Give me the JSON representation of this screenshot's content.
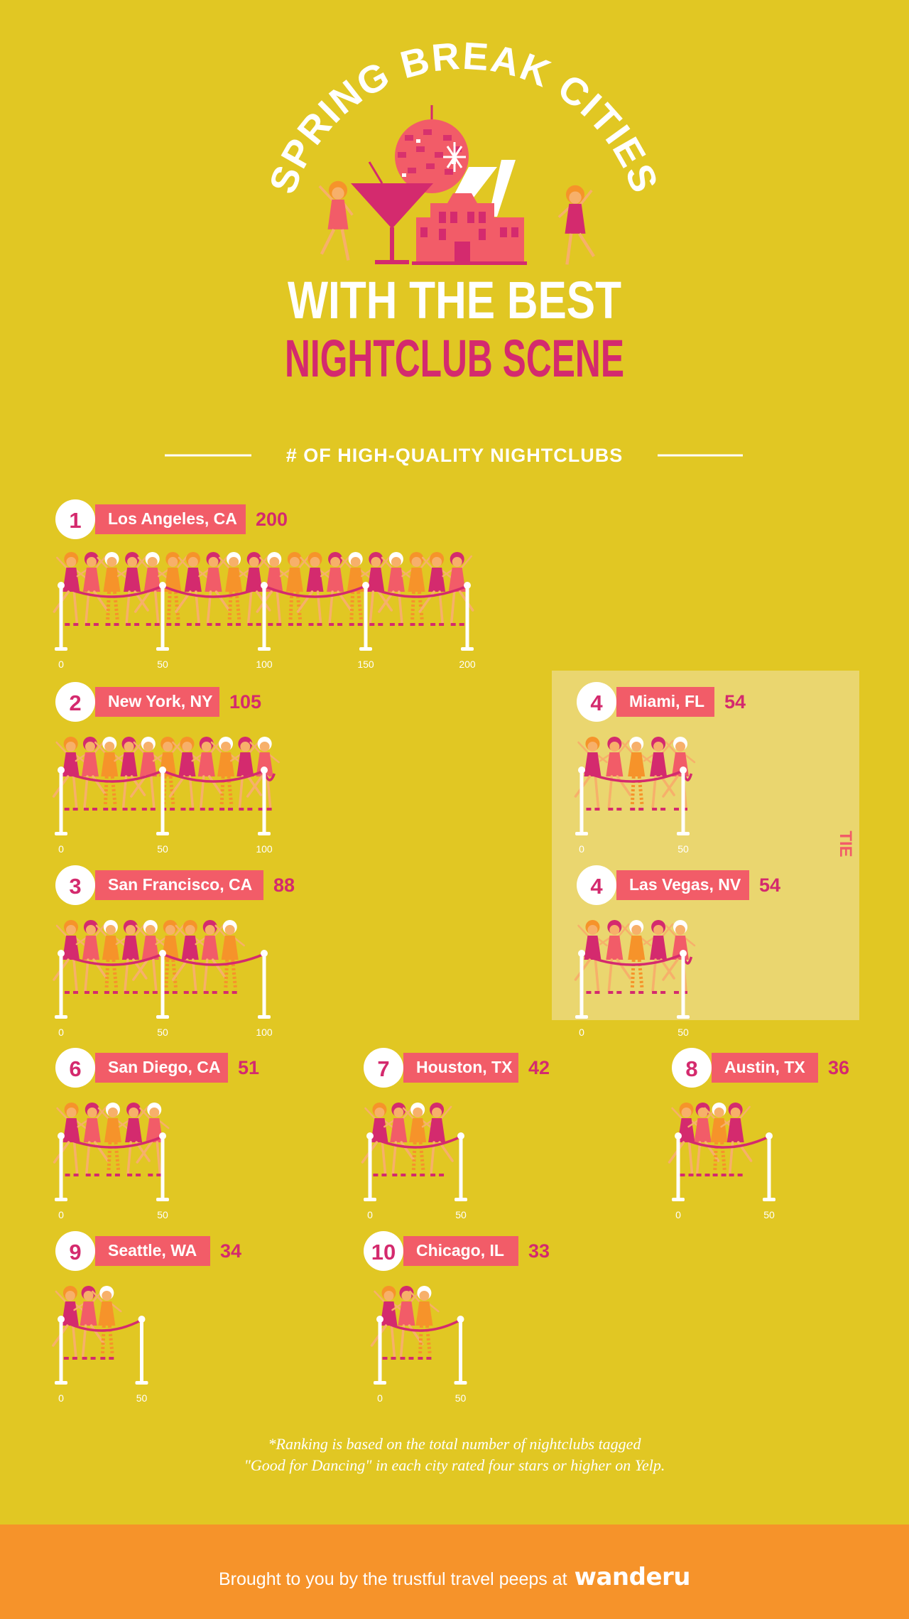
{
  "header": {
    "title_arc": "SPRING BREAK CITIES",
    "title_line2": "WITH THE BEST",
    "title_line3": "NIGHTCLUB SCENE"
  },
  "colors": {
    "background": "#e1c723",
    "white": "#ffffff",
    "magenta": "#d42a6e",
    "coral": "#f25c68",
    "orange": "#f6932a",
    "tie_panel": "#ead66f",
    "skin": "#f7b06a"
  },
  "chart_data": {
    "type": "bar",
    "title": "# OF HIGH-QUALITY NIGHTCLUBS",
    "unit_note": "each dancer figure represents about 10 nightclubs",
    "ranks": [
      "1",
      "2",
      "3",
      "4",
      "4",
      "6",
      "7",
      "8",
      "9",
      "10"
    ],
    "categories": [
      "Los Angeles, CA",
      "New York, NY",
      "San Francisco, CA",
      "Miami, FL",
      "Las Vegas, NV",
      "San Diego, CA",
      "Houston, TX",
      "Austin, TX",
      "Seattle, WA",
      "Chicago, IL"
    ],
    "values": [
      200,
      105,
      88,
      54,
      54,
      51,
      42,
      36,
      34,
      33
    ],
    "axis_ticks": [
      [
        "0",
        "50",
        "100",
        "150",
        "200"
      ],
      [
        "0",
        "50",
        "100"
      ],
      [
        "0",
        "50",
        "100"
      ],
      [
        "0",
        "50"
      ],
      [
        "0",
        "50"
      ],
      [
        "0",
        "50"
      ],
      [
        "0",
        "50"
      ],
      [
        "0",
        "50"
      ],
      [
        "0",
        "50"
      ],
      [
        "0",
        "50"
      ]
    ],
    "tie_label": "TIE",
    "tie_between": [
      "Miami, FL",
      "Las Vegas, NV"
    ]
  },
  "footnote": {
    "line1": "*Ranking is based on the total number of nightclubs tagged",
    "line2": "\"Good for Dancing\" in each city rated four stars or higher on Yelp."
  },
  "footer": {
    "text": "Brought to you by the trustful travel peeps at",
    "brand": "wanderu"
  },
  "icons": [
    "disco-ball-icon",
    "martini-glass-icon",
    "nightclub-building-icon",
    "dancer-icon",
    "velvet-rope-icon",
    "stanchion-post-icon"
  ]
}
